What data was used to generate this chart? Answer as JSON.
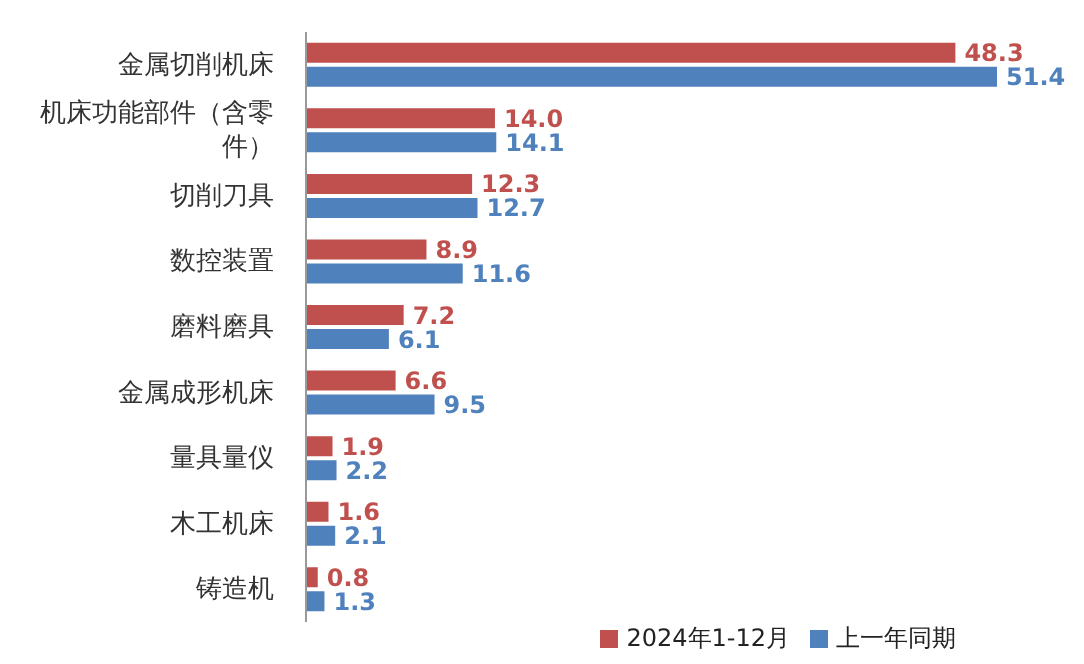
{
  "chart_data": {
    "type": "bar",
    "orientation": "horizontal",
    "categories": [
      "金属切削机床",
      "机床功能部件（含零件）",
      "切削刀具",
      "数控装置",
      "磨料磨具",
      "金属成形机床",
      "量具量仪",
      "木工机床",
      "铸造机"
    ],
    "series": [
      {
        "name": "2024年1-12月",
        "color": "#c0504d",
        "values": [
          48.3,
          14.0,
          12.3,
          8.9,
          7.2,
          6.6,
          1.9,
          1.6,
          0.8
        ],
        "value_labels": [
          "48.3",
          "14.0",
          "12.3",
          "8.9",
          "7.2",
          "6.6",
          "1.9",
          "1.6",
          "0.8"
        ]
      },
      {
        "name": "上一年同期",
        "color": "#4f81bd",
        "values": [
          51.4,
          14.1,
          12.7,
          11.6,
          6.1,
          9.5,
          2.2,
          2.1,
          1.3
        ],
        "value_labels": [
          "51.4",
          "14.1",
          "12.7",
          "11.6",
          "6.1",
          "9.5",
          "2.2",
          "2.1",
          "1.3"
        ]
      }
    ],
    "legend": "bottom right",
    "grid": false
  }
}
